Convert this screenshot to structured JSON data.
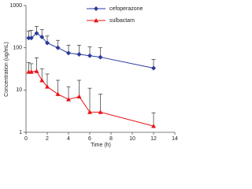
{
  "chart_data": {
    "type": "line",
    "x": [
      0.25,
      0.5,
      1,
      1.5,
      2,
      3,
      4,
      5,
      6,
      7,
      12
    ],
    "series": [
      {
        "name": "cefoperazone",
        "color": "#2b3a9b",
        "marker": "diamond",
        "values": [
          170,
          170,
          220,
          180,
          130,
          100,
          75,
          70,
          65,
          60,
          33
        ],
        "errors": [
          80,
          90,
          100,
          90,
          60,
          50,
          40,
          45,
          40,
          40,
          20
        ]
      },
      {
        "name": "sulbactam",
        "color": "#e8141b",
        "marker": "triangle",
        "values": [
          27,
          27,
          28,
          17,
          12,
          8,
          6,
          7,
          3,
          3,
          1.4
        ],
        "errors": [
          18,
          15,
          30,
          15,
          12,
          9,
          6,
          10,
          8,
          5,
          1.5
        ]
      }
    ],
    "xlabel": "Time (h)",
    "ylabel": "Concentration (ug/mL)",
    "xlim": [
      0,
      14
    ],
    "xticks": [
      0,
      2,
      4,
      6,
      8,
      10,
      12,
      14
    ],
    "ylim": [
      1,
      1000
    ],
    "yticks": [
      1,
      10,
      100,
      1000
    ],
    "ylog": true,
    "legend": "upper right"
  }
}
